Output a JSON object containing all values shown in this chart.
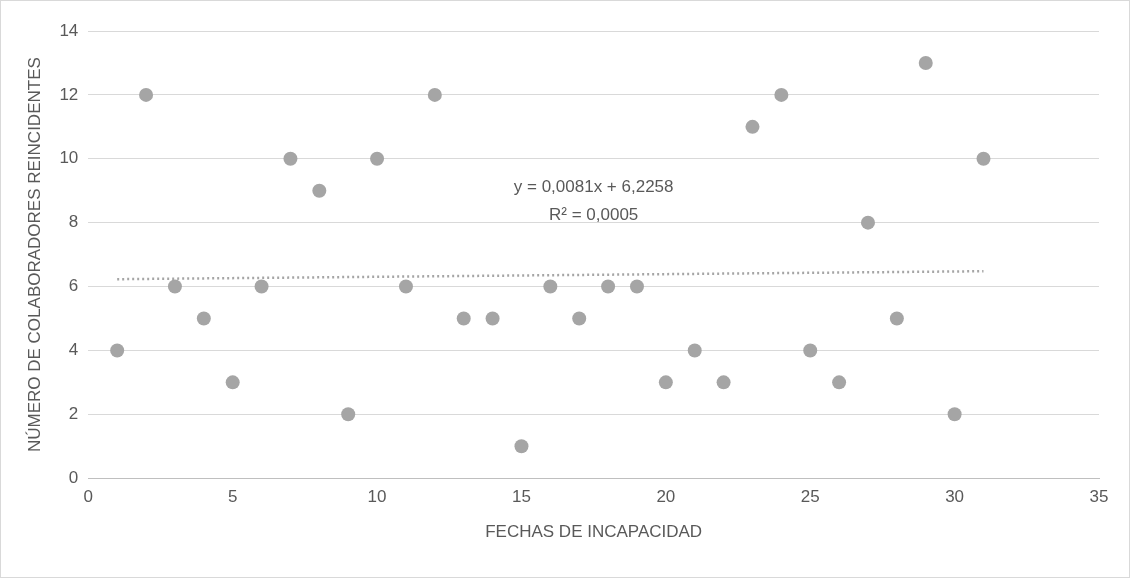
{
  "chart_data": {
    "type": "scatter",
    "xlabel": "FECHAS DE INCAPACIDAD",
    "ylabel": "NÚMERO DE COLABORADORES REINCIDENTES",
    "x": [
      1,
      2,
      3,
      4,
      5,
      6,
      7,
      8,
      9,
      10,
      11,
      12,
      13,
      14,
      15,
      16,
      17,
      18,
      19,
      20,
      21,
      22,
      23,
      24,
      25,
      26,
      27,
      28,
      29,
      30,
      31
    ],
    "series": [
      {
        "color": "#a5a5a5",
        "values": [
          4,
          12,
          6,
          5,
          3,
          6,
          10,
          9,
          2,
          10,
          6,
          12,
          5,
          5,
          1,
          6,
          5,
          6,
          6,
          3,
          4,
          3,
          11,
          12,
          4,
          3,
          8,
          5,
          13,
          2,
          10
        ]
      },
      {
        "type": "line",
        "color": "#a5a5a5",
        "line_style": "dotted",
        "marker": "none",
        "x": [
          1,
          31
        ],
        "values": [
          6.23,
          6.48
        ]
      }
    ],
    "annotations": [
      "y = 0,0081x + 6,2258",
      "R² = 0,0005"
    ],
    "xlim": [
      0,
      35
    ],
    "xticks": [
      0,
      5,
      10,
      15,
      20,
      25,
      30,
      35
    ],
    "ylim": [
      0,
      14
    ],
    "yticks": [
      0,
      2,
      4,
      6,
      8,
      10,
      12,
      14
    ],
    "grid": "y",
    "legend": false,
    "marker": "circle"
  }
}
